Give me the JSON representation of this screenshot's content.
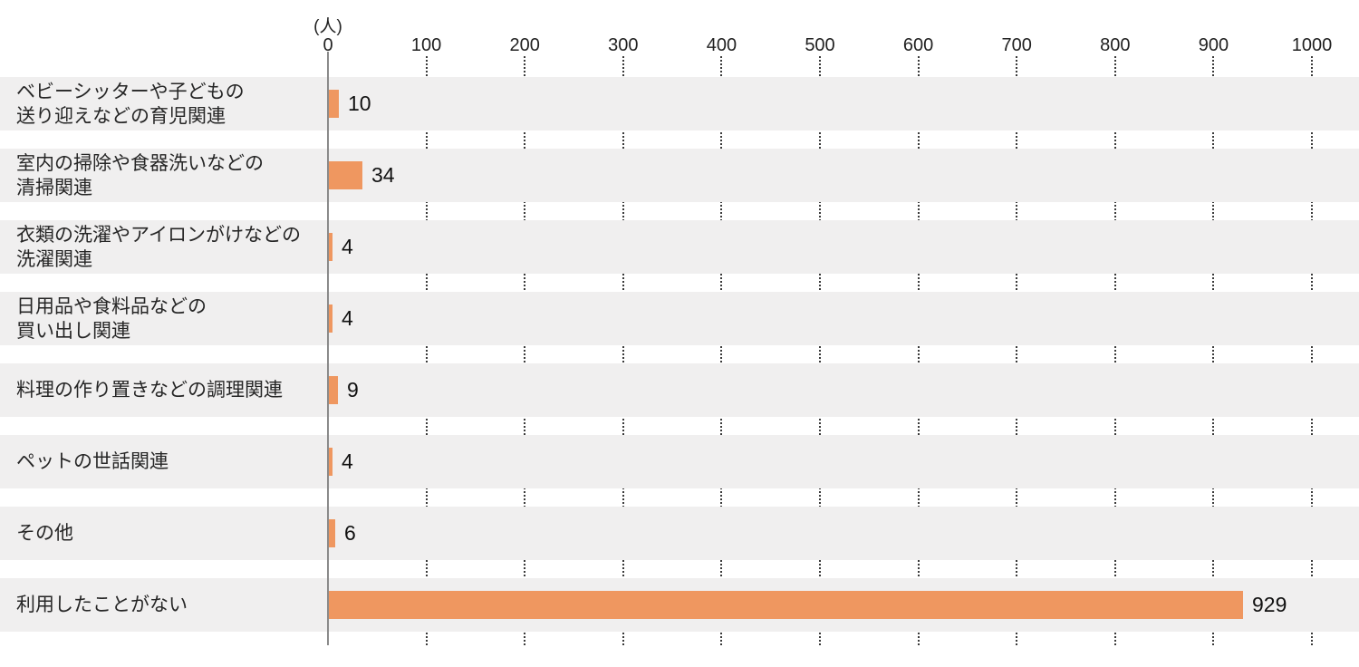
{
  "chart_data": {
    "type": "bar",
    "orientation": "horizontal",
    "title": "",
    "unit_label": "(人)",
    "xlabel": "",
    "ylabel": "",
    "xlim": [
      0,
      1000
    ],
    "tick_step": 100,
    "ticks": [
      0,
      100,
      200,
      300,
      400,
      500,
      600,
      700,
      800,
      900,
      1000
    ],
    "grid": "dotted-vertical",
    "legend_position": "none",
    "categories": [
      "ベビーシッターや子どもの\n送り迎えなどの育児関連",
      "室内の掃除や食器洗いなどの\n清掃関連",
      "衣類の洗濯やアイロンがけなどの\n洗濯関連",
      "日用品や食料品などの\n買い出し関連",
      "料理の作り置きなどの調理関連",
      "ペットの世話関連",
      "その他",
      "利用したことがない"
    ],
    "values": [
      10,
      34,
      4,
      4,
      9,
      4,
      6,
      929
    ]
  },
  "colors": {
    "bar": "#ef9760",
    "row_background": "#f0efef",
    "axis_line": "#8a8a8a",
    "grid_dots": "#3a3a3a",
    "text": "#262626"
  }
}
